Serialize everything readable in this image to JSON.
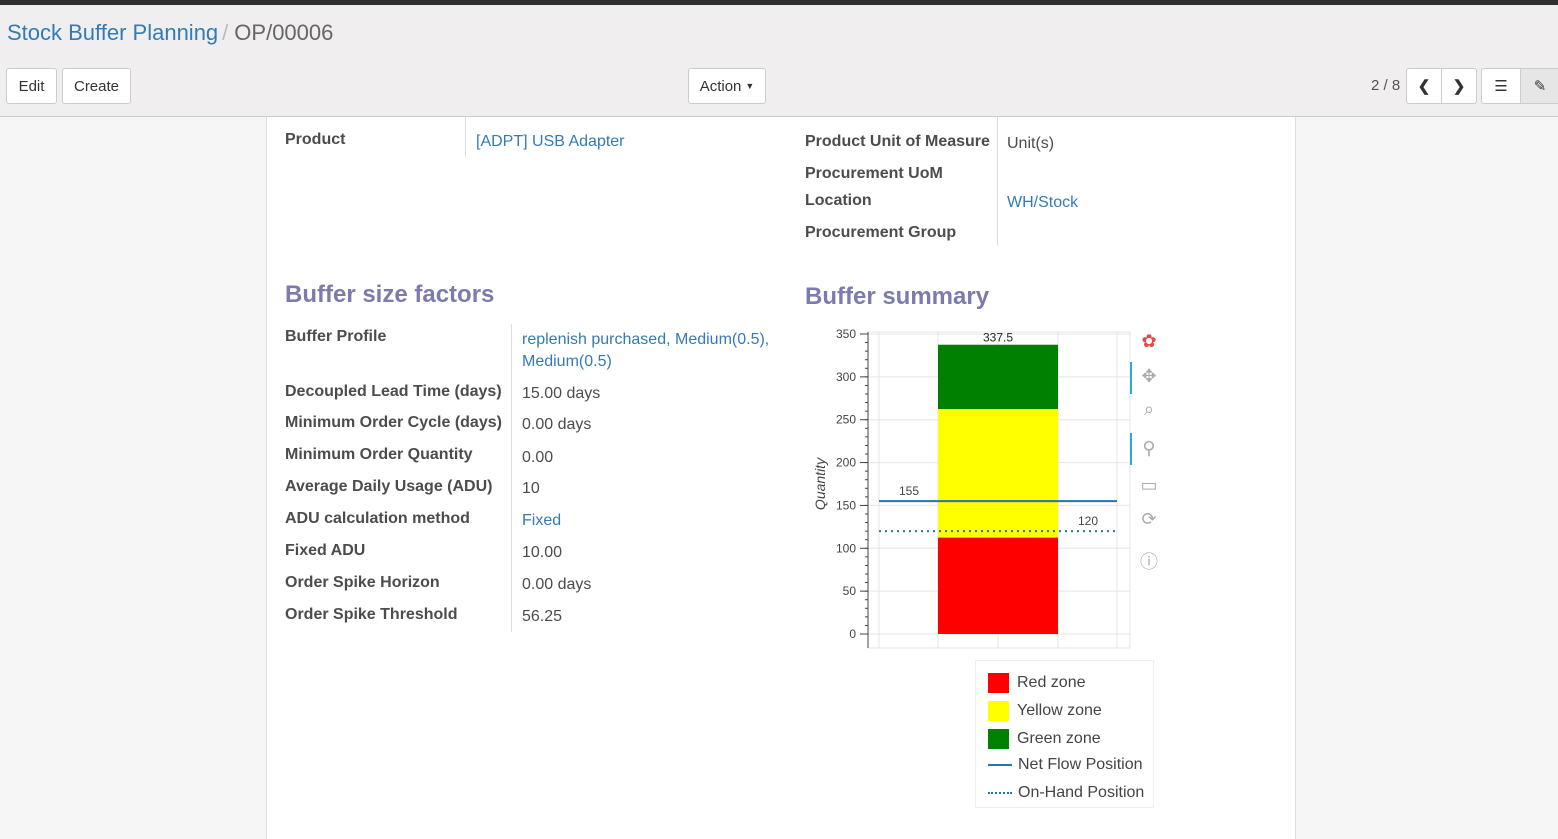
{
  "breadcrumb": {
    "parent": "Stock Buffer Planning",
    "current": "OP/00006"
  },
  "toolbar": {
    "edit": "Edit",
    "create": "Create",
    "action": "Action",
    "pager": "2 / 8"
  },
  "fields_left": [
    {
      "label": "Product",
      "value": "[ADPT] USB Adapter",
      "link": true
    }
  ],
  "fields_right": [
    {
      "label": "Product Unit of Measure",
      "value": "Unit(s)"
    },
    {
      "label": "Procurement UoM",
      "value": ""
    },
    {
      "label": "Location",
      "value": "WH/Stock"
    },
    {
      "label": "Procurement Group",
      "value": ""
    }
  ],
  "buffer_factors": {
    "title": "Buffer size factors",
    "rows": [
      {
        "label": "Buffer Profile",
        "value": "replenish purchased, Medium(0.5),",
        "value2": "Medium(0.5)"
      },
      {
        "label": "Decoupled Lead Time (days)",
        "value": "15.00",
        "unit": "days"
      },
      {
        "label": "Minimum Order Cycle (days)",
        "value": "0.00",
        "unit": "days"
      },
      {
        "label": "Minimum Order Quantity",
        "value": "0.00"
      },
      {
        "label": "Average Daily Usage (ADU)",
        "value": "10"
      },
      {
        "label": "ADU calculation method",
        "value": "Fixed"
      },
      {
        "label": "Fixed ADU",
        "value": "10.00"
      },
      {
        "label": "Order Spike Horizon",
        "value": "0.00",
        "unit": "days"
      },
      {
        "label": "Order Spike Threshold",
        "value": "56.25"
      }
    ]
  },
  "buffer_summary": {
    "title": "Buffer summary"
  },
  "chart_data": {
    "type": "bar",
    "stacked": true,
    "ylabel": "Quantity",
    "ylim": [
      0,
      350
    ],
    "yticks": [
      0,
      50,
      100,
      150,
      200,
      250,
      300,
      350
    ],
    "grid": true,
    "series": [
      {
        "name": "Red zone",
        "from": 0,
        "to": 112.5,
        "color": "#ff0000"
      },
      {
        "name": "Yellow zone",
        "from": 112.5,
        "to": 262.5,
        "color": "#ffff00"
      },
      {
        "name": "Green zone",
        "from": 262.5,
        "to": 337.5,
        "color": "#008000"
      }
    ],
    "bar_labels": [
      "112.5",
      "262.5",
      "337.5"
    ],
    "lines": [
      {
        "name": "Net Flow Position",
        "value": 155,
        "style": "solid",
        "color": "#1f77b4",
        "label": "155"
      },
      {
        "name": "On-Hand Position",
        "value": 120,
        "style": "dotted",
        "color": "#1f77b4",
        "label": "120"
      }
    ],
    "legend_position": "bottom-right",
    "tools": [
      "bokeh-logo",
      "pan",
      "box-zoom",
      "wheel-zoom",
      "save",
      "reset",
      "help"
    ]
  }
}
